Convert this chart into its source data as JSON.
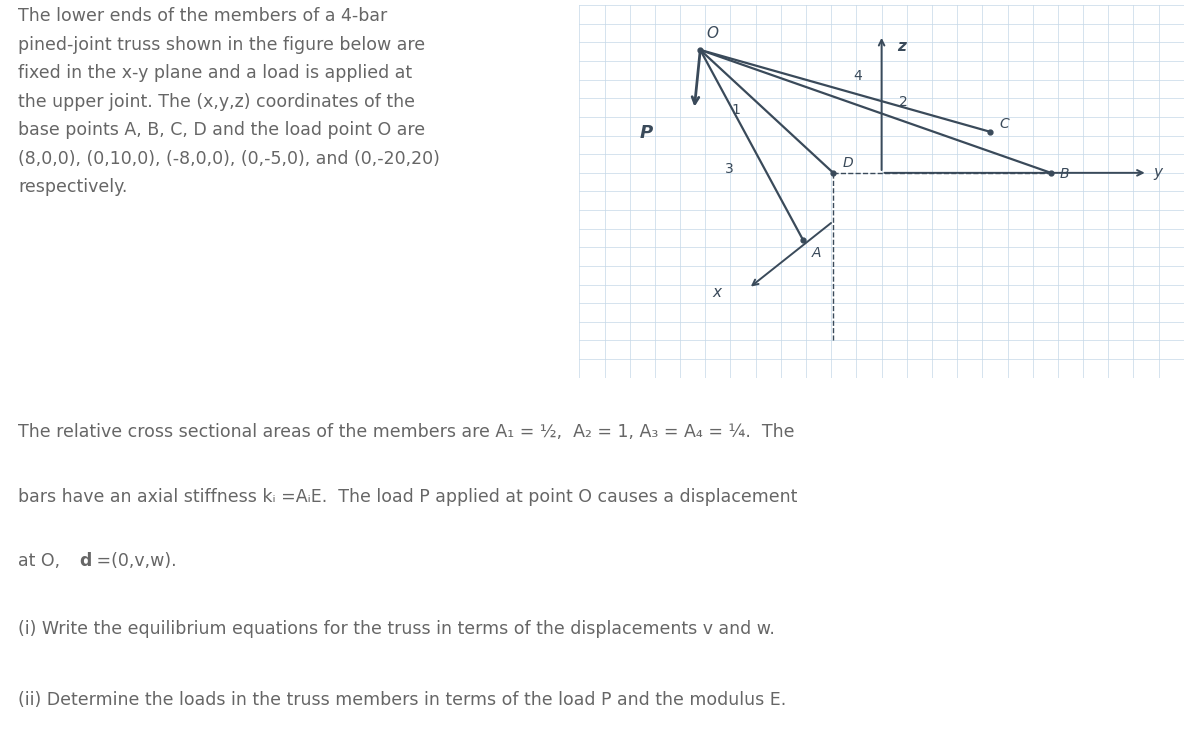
{
  "bg_color": "#ffffff",
  "text_color": "#666666",
  "figure_size": [
    11.97,
    7.45
  ],
  "dpi": 100,
  "paragraph1": "The lower ends of the members of a 4-bar\npined-joint truss shown in the figure below are\nfixed in the x-y plane and a load is applied at\nthe upper joint. The (x,y,z) coordinates of the\nbase points A, B, C, D and the load point O are\n(8,0,0), (0,10,0), (-8,0,0), (0,-5,0), and (0,-20,20)\nrespectively.",
  "paragraph3": "(i) Write the equilibrium equations for the truss in terms of the displacements v and w.",
  "paragraph4": "(ii) Determine the loads in the truss members in terms of the load P and the modulus E.",
  "grid_color": "#c5d8e8",
  "grid_bg": "#dae6f0",
  "truss_color": "#3a4a5a",
  "line1_text": "The relative cross sectional areas of the members are A₁ = ½,  A₂ = 1, A₃ = A₄ = ¼.  The",
  "line2_text": "bars have an axial stiffness kᵢ =AᵢE.  The load P applied at point O causes a displacement",
  "line3a": "at O,  ",
  "line3b": "d",
  "line3c": " =(0,v,w)."
}
